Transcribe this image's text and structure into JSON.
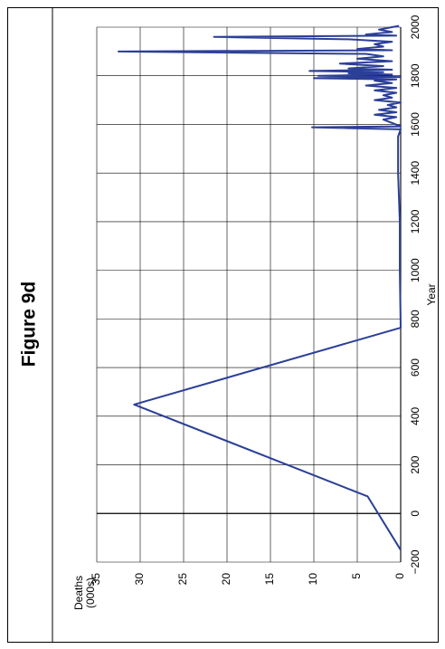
{
  "chart_data": {
    "type": "line",
    "title": "Figure 9d",
    "x_label": "Year",
    "y_label": [
      "Deaths",
      "(000s)"
    ],
    "x": [
      -150,
      70,
      448,
      764,
      1000,
      1200,
      1400,
      1550,
      1580,
      1588,
      1592,
      1620,
      1630,
      1640,
      1650,
      1660,
      1670,
      1680,
      1690,
      1700,
      1710,
      1720,
      1730,
      1740,
      1750,
      1760,
      1770,
      1780,
      1785,
      1790,
      1795,
      1800,
      1805,
      1810,
      1815,
      1820,
      1825,
      1830,
      1840,
      1850,
      1860,
      1870,
      1880,
      1890,
      1900,
      1905,
      1910,
      1920,
      1930,
      1940,
      1950,
      1960,
      1965,
      1970,
      1980,
      1990,
      2000,
      2005
    ],
    "series": [
      {
        "name": "Deaths",
        "color": "#2b3f97",
        "values": [
          0,
          3.8,
          30.7,
          0,
          0.1,
          0.1,
          0.3,
          0.3,
          0,
          10.2,
          0,
          2,
          0.5,
          3,
          0.5,
          2.5,
          0.5,
          1.5,
          0,
          3,
          1,
          2,
          0.5,
          3,
          0.5,
          4,
          1,
          3,
          0.5,
          10,
          0,
          9.5,
          1,
          6,
          2,
          10.5,
          1,
          6,
          2,
          7,
          1,
          5,
          2,
          4,
          32.5,
          1,
          5,
          2,
          3,
          1,
          6,
          21.5,
          0.5,
          4,
          1,
          2.5,
          1,
          0.2
        ]
      }
    ],
    "xlim": [
      -200,
      2000
    ],
    "xticks": [
      {
        "value": -200,
        "label": "−200"
      },
      0,
      200,
      400,
      600,
      800,
      1000,
      1200,
      1400,
      1600,
      1800,
      2000
    ],
    "ylim": [
      0,
      35
    ],
    "yticks": [
      0,
      5,
      10,
      15,
      20,
      25,
      30,
      35
    ],
    "grid": true
  }
}
